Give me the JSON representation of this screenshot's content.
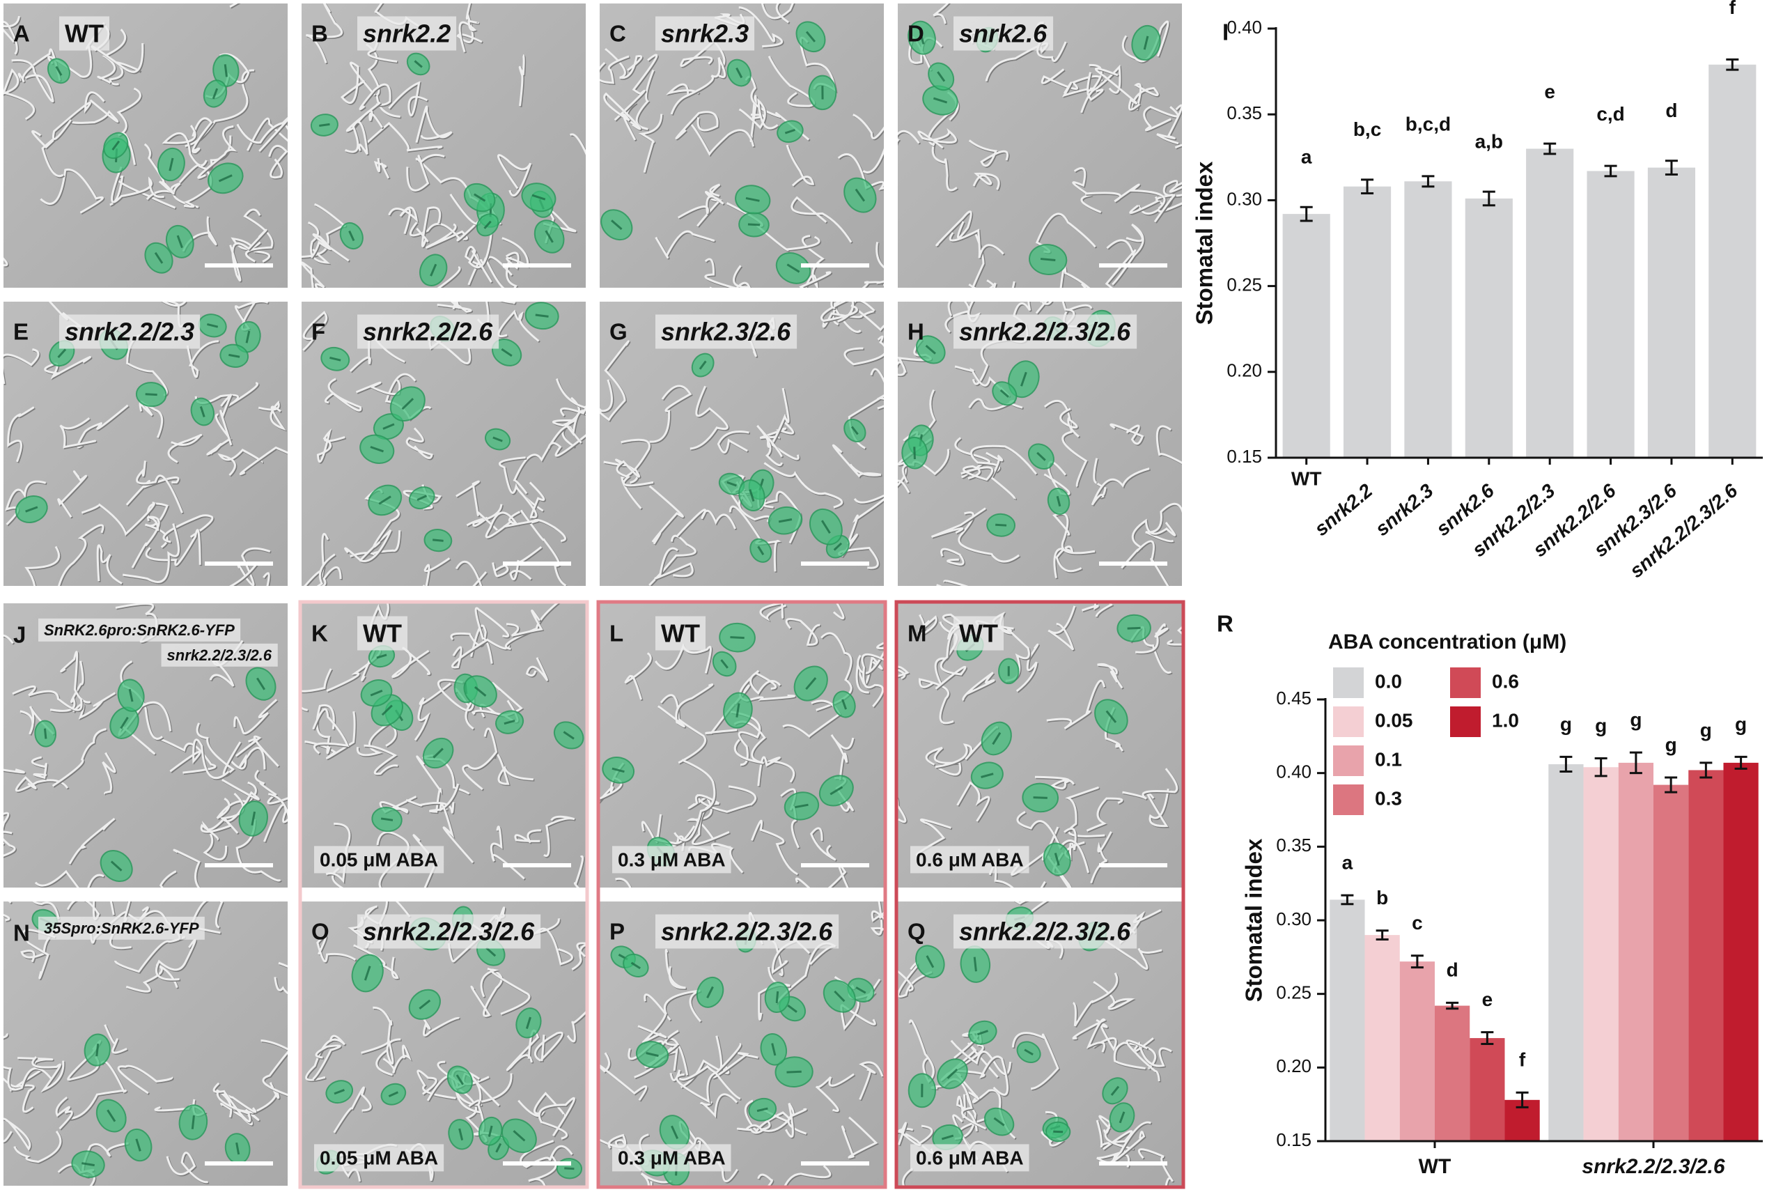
{
  "panels": [
    {
      "letter": "A",
      "label": "WT"
    },
    {
      "letter": "B",
      "label": "snrk2.2"
    },
    {
      "letter": "C",
      "label": "snrk2.3"
    },
    {
      "letter": "D",
      "label": "snrk2.6"
    },
    {
      "letter": "E",
      "label": "snrk2.2/2.3"
    },
    {
      "letter": "F",
      "label": "snrk2.2/2.6"
    },
    {
      "letter": "G",
      "label": "snrk2.3/2.6"
    },
    {
      "letter": "H",
      "label": "snrk2.2/2.3/2.6"
    },
    {
      "letter": "J",
      "label": "SnRK2.6pro:SnRK2.6-YFP",
      "label2": "snrk2.2/2.3/2.6"
    },
    {
      "letter": "K",
      "label": "WT",
      "treatment": "0.05 μM ABA"
    },
    {
      "letter": "L",
      "label": "WT",
      "treatment": "0.3 μM ABA"
    },
    {
      "letter": "M",
      "label": "WT",
      "treatment": "0.6 μM ABA"
    },
    {
      "letter": "N",
      "label": "35Spro:SnRK2.6-YFP"
    },
    {
      "letter": "O",
      "label": "snrk2.2/2.3/2.6",
      "treatment": "0.05 μM ABA"
    },
    {
      "letter": "P",
      "label": "snrk2.2/2.3/2.6",
      "treatment": "0.3 μM ABA"
    },
    {
      "letter": "Q",
      "label": "snrk2.2/2.3/2.6",
      "treatment": "0.6 μM ABA"
    }
  ],
  "chart_data": [
    {
      "type": "bar",
      "label": "I",
      "y_label": "Stomatal index",
      "categories": [
        "WT",
        "snrk2.2",
        "snrk2.3",
        "snrk2.6",
        "snrk2.2/2.3",
        "snrk2.2/2.6",
        "snrk2.3/2.6",
        "snrk2.2/2.3/2.6"
      ],
      "values": [
        0.292,
        0.308,
        0.311,
        0.301,
        0.33,
        0.317,
        0.319,
        0.379
      ],
      "errors": [
        0.004,
        0.004,
        0.003,
        0.004,
        0.003,
        0.003,
        0.004,
        0.003
      ],
      "letters": [
        "a",
        "b,c",
        "b,c,d",
        "a,b",
        "e",
        "c,d",
        "d",
        "f"
      ],
      "color": "#d3d4d6",
      "ylim": [
        0.15,
        0.4
      ],
      "yticks": [
        0.15,
        {
          "value": 0.2,
          "label": "0.20"
        },
        0.25,
        {
          "value": 0.3,
          "label": "0.30"
        },
        0.35,
        {
          "value": 0.4,
          "label": "0.40"
        }
      ]
    },
    {
      "type": "grouped_bar",
      "label": "R",
      "y_label": "Stomatal index",
      "legend_title": "ABA concentration (μM)",
      "categories": [
        "WT",
        "snrk2.2/2.3/2.6"
      ],
      "series": [
        {
          "name": "0.0",
          "color": "#d3d4d6",
          "values": [
            0.314,
            0.406
          ],
          "errors": [
            0.003,
            0.005
          ],
          "letters": [
            "a",
            "g"
          ]
        },
        {
          "name": "0.05",
          "color": "#f4cfd3",
          "values": [
            0.29,
            0.404
          ],
          "errors": [
            0.003,
            0.006
          ],
          "letters": [
            "b",
            "g"
          ]
        },
        {
          "name": "0.1",
          "color": "#e8a3ab",
          "values": [
            0.272,
            0.407
          ],
          "errors": [
            0.004,
            0.007
          ],
          "letters": [
            "c",
            "g"
          ]
        },
        {
          "name": "0.3",
          "color": "#dc7680",
          "values": [
            0.242,
            0.392
          ],
          "errors": [
            0.002,
            0.005
          ],
          "letters": [
            "d",
            "g"
          ]
        },
        {
          "name": "0.6",
          "color": "#d04a57",
          "values": [
            0.22,
            0.402
          ],
          "errors": [
            0.004,
            0.005
          ],
          "letters": [
            "e",
            "g"
          ]
        },
        {
          "name": "1.0",
          "color": "#c01c2e",
          "values": [
            0.178,
            0.407
          ],
          "errors": [
            0.005,
            0.004
          ],
          "letters": [
            "f",
            "g"
          ]
        }
      ],
      "ylim": [
        0.15,
        0.45
      ],
      "yticks": [
        0.15,
        {
          "value": 0.2,
          "label": "0.20"
        },
        0.25,
        {
          "value": 0.3,
          "label": "0.30"
        },
        0.35,
        {
          "value": 0.4,
          "label": "0.40"
        },
        0.45
      ]
    }
  ]
}
